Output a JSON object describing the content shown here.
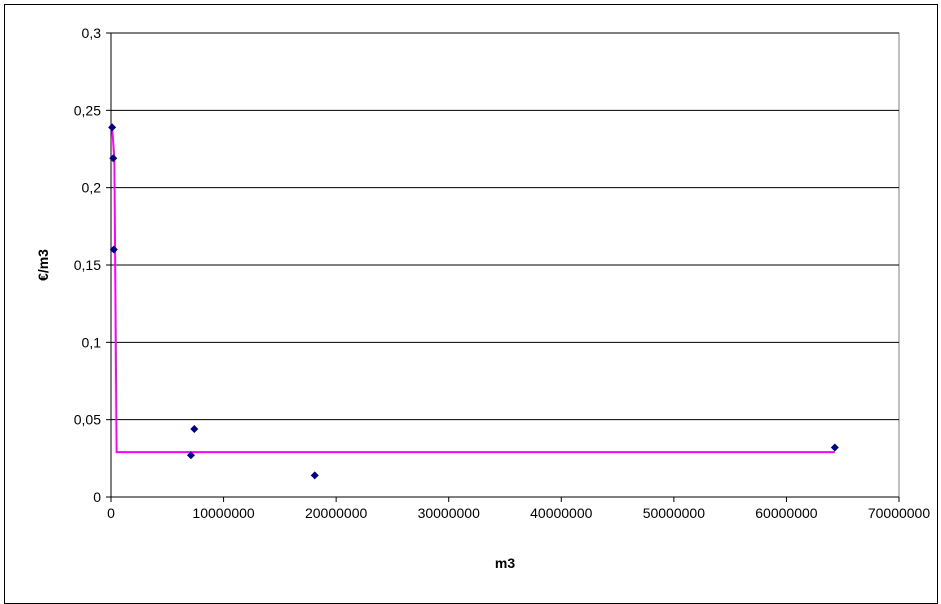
{
  "chart_data": {
    "type": "scatter",
    "title": "",
    "xlabel": "m3",
    "ylabel": "€/m3",
    "xlim": [
      0,
      70000000
    ],
    "ylim": [
      0,
      0.3
    ],
    "x_ticks": [
      0,
      10000000,
      20000000,
      30000000,
      40000000,
      50000000,
      60000000,
      70000000
    ],
    "x_tick_labels": [
      "0",
      "10000000",
      "20000000",
      "30000000",
      "40000000",
      "50000000",
      "60000000",
      "70000000"
    ],
    "y_ticks": [
      0,
      0.05,
      0.1,
      0.15,
      0.2,
      0.25,
      0.3
    ],
    "y_tick_labels": [
      "0",
      "0,05",
      "0,1",
      "0,15",
      "0,2",
      "0,25",
      "0,3"
    ],
    "grid": "horizontal",
    "legend": "none",
    "series": [
      {
        "kind": "points",
        "color": "#000080",
        "x": [
          100000,
          200000,
          250000,
          7100000,
          7400000,
          18100000,
          64300000
        ],
        "y": [
          0.239,
          0.219,
          0.16,
          0.027,
          0.044,
          0.014,
          0.032
        ]
      },
      {
        "kind": "line",
        "color": "#ff00ff",
        "x": [
          100000,
          300000,
          500000,
          64300000
        ],
        "y": [
          0.239,
          0.219,
          0.029,
          0.029
        ]
      }
    ]
  }
}
